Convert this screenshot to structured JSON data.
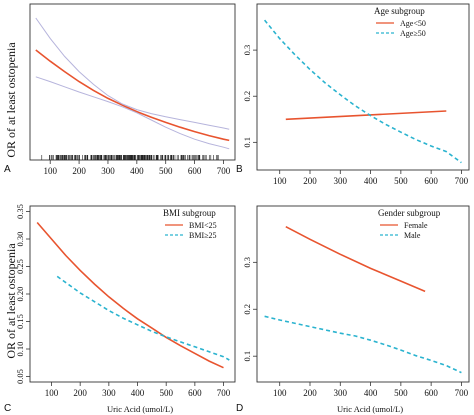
{
  "figure": {
    "ylabel": "OR of at least ostopenia",
    "xlabel": "Uric Acid (umol/L)"
  },
  "colors": {
    "red": "#e8542f",
    "blue": "#2ab3cf",
    "ci": "#b6b4dc",
    "axis": "#333333",
    "rug": "#222222"
  },
  "chart_data": [
    {
      "panel": "A",
      "type": "line",
      "title": "",
      "xlabel": "",
      "ylabel": "OR of at least ostopenia",
      "xlim": [
        30,
        740
      ],
      "ylim": [
        0.03,
        0.42
      ],
      "xticks": [
        100,
        200,
        300,
        400,
        500,
        600,
        700
      ],
      "yticks": [],
      "legend_title": "",
      "series": [
        {
          "name": "",
          "style": "solid",
          "color_key": "red",
          "role": "estimate",
          "x": [
            50,
            100,
            150,
            200,
            250,
            300,
            350,
            400,
            450,
            500,
            550,
            600,
            650,
            700,
            720
          ],
          "y": [
            0.305,
            0.277,
            0.251,
            0.226,
            0.204,
            0.184,
            0.167,
            0.151,
            0.137,
            0.124,
            0.112,
            0.101,
            0.091,
            0.082,
            0.079
          ]
        },
        {
          "name": "",
          "style": "solid",
          "color_key": "ci",
          "role": "ci-upper",
          "x": [
            50,
            100,
            150,
            200,
            250,
            300,
            350,
            400,
            450,
            500,
            550,
            600,
            650,
            700,
            720
          ],
          "y": [
            0.385,
            0.334,
            0.289,
            0.251,
            0.219,
            0.191,
            0.17,
            0.156,
            0.146,
            0.138,
            0.131,
            0.124,
            0.117,
            0.11,
            0.107
          ]
        },
        {
          "name": "",
          "style": "solid",
          "color_key": "ci",
          "role": "ci-lower",
          "x": [
            50,
            100,
            150,
            200,
            250,
            300,
            350,
            400,
            450,
            500,
            550,
            600,
            650,
            700,
            720
          ],
          "y": [
            0.238,
            0.226,
            0.213,
            0.2,
            0.188,
            0.176,
            0.163,
            0.148,
            0.13,
            0.112,
            0.096,
            0.082,
            0.071,
            0.062,
            0.058
          ]
        }
      ],
      "rug": {
        "from": 60,
        "to": 715
      }
    },
    {
      "panel": "B",
      "type": "line",
      "title": "",
      "xlabel": "",
      "ylabel": "",
      "xlim": [
        25,
        725
      ],
      "ylim": [
        0.04,
        0.4
      ],
      "xticks": [
        100,
        200,
        300,
        400,
        500,
        600,
        700
      ],
      "yticks": [
        0.1,
        0.2,
        0.3
      ],
      "legend_title": "Age subgroup",
      "series": [
        {
          "name": "Age<50",
          "style": "solid",
          "color_key": "red",
          "x": [
            120,
            650
          ],
          "y": [
            0.15,
            0.168
          ]
        },
        {
          "name": "Age≥50",
          "style": "dashed",
          "color_key": "blue",
          "x": [
            50,
            100,
            150,
            200,
            250,
            300,
            350,
            400,
            450,
            500,
            550,
            600,
            650,
            700
          ],
          "y": [
            0.365,
            0.325,
            0.29,
            0.258,
            0.229,
            0.203,
            0.179,
            0.158,
            0.139,
            0.122,
            0.106,
            0.092,
            0.08,
            0.056
          ]
        }
      ]
    },
    {
      "panel": "C",
      "type": "line",
      "title": "",
      "xlabel": "Uric Acid (umol/L)",
      "ylabel": "OR of at least ostopenia",
      "xlim": [
        25,
        740
      ],
      "ylim": [
        0.04,
        0.36
      ],
      "xticks": [
        100,
        200,
        300,
        400,
        500,
        600,
        700
      ],
      "yticks": [
        0.05,
        0.1,
        0.15,
        0.2,
        0.25,
        0.3,
        0.35
      ],
      "legend_title": "BMI subgroup",
      "series": [
        {
          "name": "BMI<25",
          "style": "solid",
          "color_key": "red",
          "x": [
            50,
            100,
            150,
            200,
            250,
            300,
            350,
            400,
            450,
            500,
            550,
            600,
            650,
            700
          ],
          "y": [
            0.33,
            0.3,
            0.27,
            0.243,
            0.218,
            0.195,
            0.174,
            0.155,
            0.138,
            0.121,
            0.106,
            0.092,
            0.078,
            0.066
          ]
        },
        {
          "name": "BMI≥25",
          "style": "dashed",
          "color_key": "blue",
          "x": [
            120,
            200,
            250,
            300,
            350,
            400,
            450,
            500,
            550,
            600,
            650,
            700,
            720
          ],
          "y": [
            0.232,
            0.202,
            0.186,
            0.17,
            0.156,
            0.144,
            0.132,
            0.122,
            0.113,
            0.104,
            0.095,
            0.086,
            0.08
          ]
        }
      ]
    },
    {
      "panel": "D",
      "type": "line",
      "title": "",
      "xlabel": "Uric Acid (umol/L)",
      "ylabel": "",
      "xlim": [
        25,
        725
      ],
      "ylim": [
        0.045,
        0.42
      ],
      "xticks": [
        100,
        200,
        300,
        400,
        500,
        600,
        700
      ],
      "yticks": [
        0.1,
        0.2,
        0.3
      ],
      "legend_title": "Gender subgroup",
      "series": [
        {
          "name": "Female",
          "style": "solid",
          "color_key": "red",
          "x": [
            120,
            200,
            300,
            400,
            500,
            580
          ],
          "y": [
            0.376,
            0.349,
            0.317,
            0.287,
            0.26,
            0.238
          ]
        },
        {
          "name": "Male",
          "style": "dashed",
          "color_key": "blue",
          "x": [
            50,
            100,
            200,
            300,
            350,
            400,
            450,
            500,
            550,
            600,
            650,
            700
          ],
          "y": [
            0.185,
            0.177,
            0.163,
            0.149,
            0.143,
            0.134,
            0.124,
            0.113,
            0.101,
            0.091,
            0.08,
            0.065
          ]
        }
      ]
    }
  ]
}
